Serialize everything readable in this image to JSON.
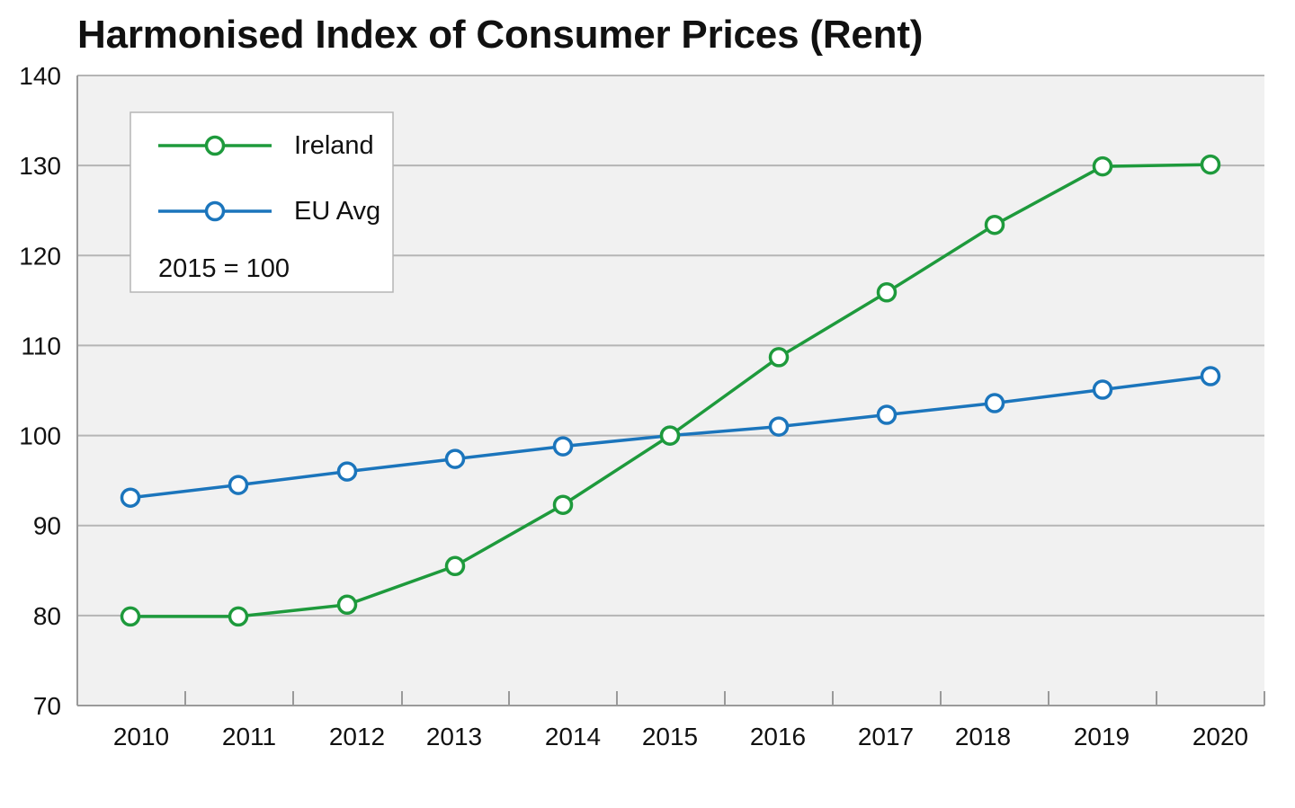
{
  "chart_data": {
    "type": "line",
    "title": "Harmonised Index of Consumer Prices (Rent)",
    "xlabel": "",
    "ylabel": "",
    "x": [
      "2010",
      "2011",
      "2012",
      "2013",
      "2014",
      "2015",
      "2016",
      "2017",
      "2018",
      "2019",
      "2020"
    ],
    "ylim": [
      70,
      140
    ],
    "yticks": [
      "70",
      "80",
      "90",
      "100",
      "110",
      "120",
      "130",
      "140"
    ],
    "grid": true,
    "legend_position": "top-left",
    "legend_note": "2015 = 100",
    "series": [
      {
        "name": "Ireland",
        "color": "#1e9a3c",
        "values": [
          79.9,
          79.9,
          81.2,
          85.5,
          92.3,
          100.0,
          108.7,
          115.9,
          123.4,
          129.9,
          130.1
        ]
      },
      {
        "name": "EU Avg",
        "color": "#1b75bc",
        "values": [
          93.1,
          94.5,
          96.0,
          97.4,
          98.8,
          100.0,
          101.0,
          102.3,
          103.6,
          105.1,
          106.6
        ]
      }
    ],
    "colors": {
      "plot_background": "#f1f1f1",
      "gridline": "#b5b5b5"
    }
  }
}
